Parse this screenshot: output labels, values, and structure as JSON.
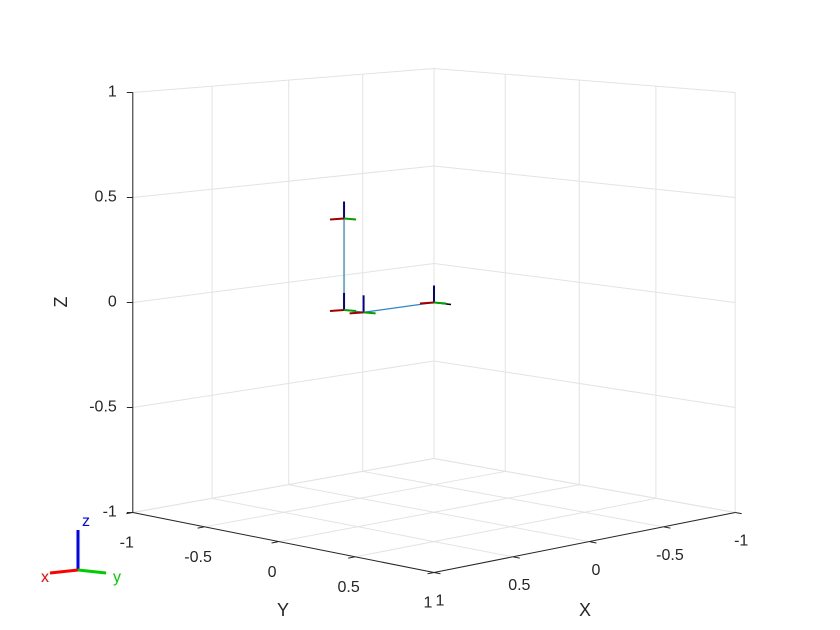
{
  "chart_data": {
    "type": "line3d",
    "x": [
      0,
      0.46,
      0.47,
      0.47
    ],
    "y": [
      0,
      0,
      -0.12,
      -0.12
    ],
    "z": [
      0,
      0,
      0,
      0.43
    ],
    "color": "#2e86c8",
    "xlim": [
      -1,
      1
    ],
    "ylim": [
      -1,
      1
    ],
    "zlim": [
      -1,
      1
    ],
    "xticks": [
      -1,
      -0.5,
      0,
      0.5,
      1
    ],
    "yticks": [
      -1,
      -0.5,
      0,
      0.5,
      1
    ],
    "zticks": [
      -1,
      -0.5,
      0,
      0.5,
      1
    ],
    "xlabel": "X",
    "ylabel": "Y",
    "zlabel": "Z",
    "grid": true
  },
  "orientation_axes": {
    "x": "x",
    "y": "y",
    "z": "z"
  }
}
